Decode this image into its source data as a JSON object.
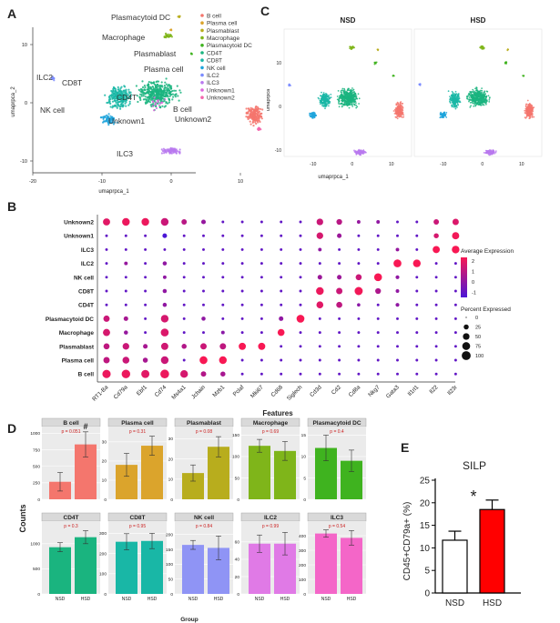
{
  "colors": {
    "bcell": "#f4766d",
    "plasma": "#dba42c",
    "plasmablast": "#b8ad1d",
    "macrophage": "#7fb51a",
    "pdc": "#3fb31f",
    "cd4t": "#1ab47f",
    "cd8t": "#19b7a6",
    "nk": "#1ea4dc",
    "ilc2": "#7b8cff",
    "ilc3": "#b979ef",
    "unk1": "#de66dc",
    "unk2": "#f466ad",
    "hsd": "#ff0000"
  },
  "panelA": {
    "label": "A",
    "xlabel": "umaprpca_1",
    "ylabel": "umaprpca_2",
    "xticks": [
      "-20",
      "-10",
      "0",
      "10"
    ],
    "yticks": [
      "10",
      "0",
      "-10"
    ],
    "cluster_labels": [
      "Plasmacytoid DC",
      "Macrophage",
      "Plasmablast",
      "Plasma cell",
      "ILC2",
      "CD8T",
      "CD4T",
      "NK cell",
      "Unknown1",
      "B cell",
      "Unknown2",
      "ILC3"
    ],
    "legend": [
      "B cell",
      "Plasma cell",
      "Plasmablast",
      "Macrophage",
      "Plasmacytoid DC",
      "CD4T",
      "CD8T",
      "NK cell",
      "ILC2",
      "ILC3",
      "Unknown1",
      "Unknown2"
    ]
  },
  "panelC": {
    "label": "C",
    "titles": [
      "NSD",
      "HSD"
    ],
    "xlabel": "umaprpca_1",
    "ylabel": "umaprpca",
    "xticks": [
      "-10",
      "0",
      "10"
    ],
    "yticks": [
      "10",
      "0",
      "-10"
    ]
  },
  "panelB": {
    "label": "B",
    "xlabel": "Features",
    "features": [
      "RT1-Ba",
      "Cd79a",
      "Ebf1",
      "Cd74",
      "Ms4a1",
      "Jchain",
      "Mzb1",
      "Pclaf",
      "Mki67",
      "Cd68",
      "Siglech",
      "Cd3d",
      "Cd2",
      "Cd8a",
      "Nkg7",
      "Gata3",
      "Il1rl1",
      "Il22",
      "Il23r"
    ],
    "rows": [
      "Unknown2",
      "Unknown1",
      "ILC3",
      "ILC2",
      "NK cell",
      "CD8T",
      "CD4T",
      "Plasmacytoid DC",
      "Macrophage",
      "Plasmablast",
      "Plasma cell",
      "B cell"
    ],
    "avg_title": "Average Expression",
    "avg_ticks": [
      "2",
      "1",
      "0",
      "-1"
    ],
    "pct_title": "Percent Expressed",
    "pct_ticks": [
      "0",
      "25",
      "50",
      "75",
      "100"
    ]
  },
  "panelD": {
    "label": "D",
    "ylabel": "Counts",
    "xlabel": "Group",
    "groups": [
      "NSD",
      "HSD"
    ],
    "panels": [
      {
        "name": "B cell",
        "p": "p = 0.051",
        "nsd": 265,
        "hsd": 830,
        "nsd_err": 140,
        "hsd_err": 190,
        "ymax": 1100,
        "yticks": [
          "0",
          "250",
          "500",
          "750",
          "1000"
        ],
        "color": "#f4766d",
        "mark": "#"
      },
      {
        "name": "Plasma cell",
        "p": "p = 0.31",
        "nsd": 18,
        "hsd": 28,
        "nsd_err": 6,
        "hsd_err": 5,
        "ymax": 38,
        "yticks": [
          "0",
          "10",
          "20",
          "30"
        ],
        "color": "#dba42c",
        "mark": ""
      },
      {
        "name": "Plasmablast",
        "p": "p = 0.08",
        "nsd": 13,
        "hsd": 26,
        "nsd_err": 4,
        "hsd_err": 5,
        "ymax": 36,
        "yticks": [
          "0",
          "10",
          "20",
          "30"
        ],
        "color": "#b8ad1d",
        "mark": ""
      },
      {
        "name": "Macrophage",
        "p": "p = 0.69",
        "nsd": 125,
        "hsd": 113,
        "nsd_err": 15,
        "hsd_err": 22,
        "ymax": 170,
        "yticks": [
          "0",
          "50",
          "100",
          "150"
        ],
        "color": "#7fb51a",
        "mark": ""
      },
      {
        "name": "Plasmacytoid DC",
        "p": "p = 0.4",
        "nsd": 12,
        "hsd": 9,
        "nsd_err": 3,
        "hsd_err": 2.5,
        "ymax": 17,
        "yticks": [
          "0",
          "5",
          "10",
          "15"
        ],
        "color": "#3fb31f",
        "mark": ""
      },
      {
        "name": "CD4T",
        "p": "p = 0.3",
        "nsd": 930,
        "hsd": 1130,
        "nsd_err": 90,
        "hsd_err": 130,
        "ymax": 1450,
        "yticks": [
          "0",
          "500",
          "1000"
        ],
        "color": "#1ab47f",
        "mark": ""
      },
      {
        "name": "CD8T",
        "p": "p = 0.95",
        "nsd": 258,
        "hsd": 262,
        "nsd_err": 40,
        "hsd_err": 38,
        "ymax": 360,
        "yticks": [
          "0",
          "100",
          "200",
          "300"
        ],
        "color": "#19b7a6",
        "mark": ""
      },
      {
        "name": "NK cell",
        "p": "p = 0.84",
        "nsd": 165,
        "hsd": 155,
        "nsd_err": 15,
        "hsd_err": 40,
        "ymax": 245,
        "yticks": [
          "0",
          "50",
          "100",
          "150",
          "200"
        ],
        "color": "#8f94f5",
        "mark": ""
      },
      {
        "name": "ILC2",
        "p": "p = 0.99",
        "nsd": 58,
        "hsd": 58,
        "nsd_err": 10,
        "hsd_err": 13,
        "ymax": 84,
        "yticks": [
          "0",
          "20",
          "40",
          "60"
        ],
        "color": "#e07ae6",
        "mark": ""
      },
      {
        "name": "ILC3",
        "p": "p = 0.54",
        "nsd": 415,
        "hsd": 385,
        "nsd_err": 25,
        "hsd_err": 50,
        "ymax": 500,
        "yticks": [
          "0",
          "100",
          "200",
          "300",
          "400"
        ],
        "color": "#f466c8",
        "mark": ""
      }
    ]
  },
  "panelE": {
    "label": "E",
    "title": "SILP",
    "ylabel": "CD45+CD79a+ (%)",
    "star": "*",
    "chart_data": {
      "type": "bar",
      "categories": [
        "NSD",
        "HSD"
      ],
      "values": [
        11.7,
        18.5
      ],
      "errors": [
        2.0,
        2.1
      ],
      "ylim": [
        0,
        25
      ],
      "yticks": [
        "0",
        "5",
        "10",
        "15",
        "20",
        "25"
      ],
      "colors": [
        "#ffffff",
        "#ff0000"
      ]
    }
  }
}
